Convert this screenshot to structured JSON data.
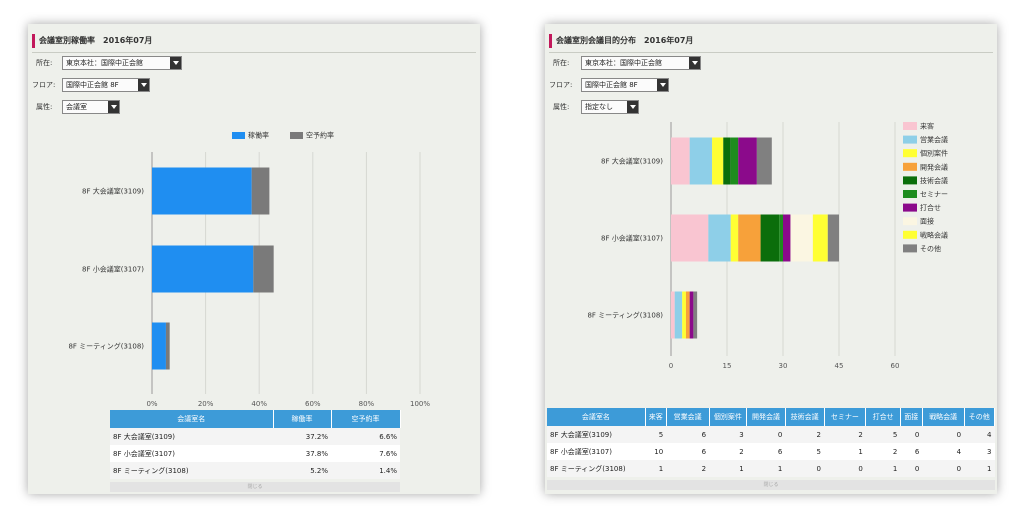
{
  "left": {
    "title": "会議室別稼働率　2016年07月",
    "filters": [
      {
        "label": "所在:",
        "value": "東京本社：国際中正会館"
      },
      {
        "label": "フロア:",
        "value": "国際中正会館 8F"
      },
      {
        "label": "属性:",
        "value": "会議室"
      }
    ],
    "table": {
      "headers": [
        "会議室名",
        "稼働率",
        "空予約率"
      ],
      "rows": [
        [
          "8F 大会議室(3109)",
          "37.2%",
          "6.6%"
        ],
        [
          "8F 小会議室(3107)",
          "37.8%",
          "7.6%"
        ],
        [
          "8F ミーティング(3108)",
          "5.2%",
          "1.4%"
        ]
      ]
    },
    "footer": "閉じる"
  },
  "right": {
    "title": "会議室別会議目的分布　2016年07月",
    "filters": [
      {
        "label": "所在:",
        "value": "東京本社：国際中正会館"
      },
      {
        "label": "フロア:",
        "value": "国際中正会館 8F"
      },
      {
        "label": "属性:",
        "value": "指定なし"
      }
    ],
    "table": {
      "headers": [
        "会議室名",
        "来客",
        "営業会議",
        "個別案件",
        "開発会議",
        "技術会議",
        "セミナー",
        "打合せ",
        "面接",
        "戦略会議",
        "その他"
      ],
      "rows": [
        [
          "8F 大会議室(3109)",
          "5",
          "6",
          "3",
          "0",
          "2",
          "2",
          "5",
          "0",
          "0",
          "4"
        ],
        [
          "8F 小会議室(3107)",
          "10",
          "6",
          "2",
          "6",
          "5",
          "1",
          "2",
          "6",
          "4",
          "3"
        ],
        [
          "8F ミーティング(3108)",
          "1",
          "2",
          "1",
          "1",
          "0",
          "0",
          "1",
          "0",
          "0",
          "1"
        ]
      ]
    },
    "footer": "閉じる"
  },
  "chart_data": [
    {
      "type": "bar",
      "orientation": "horizontal",
      "stacked": true,
      "categories": [
        "8F 大会議室(3109)",
        "8F 小会議室(3107)",
        "8F ミーティング(3108)"
      ],
      "series": [
        {
          "name": "稼働率",
          "color": "#1f8ef1",
          "values": [
            37.2,
            37.8,
            5.2
          ]
        },
        {
          "name": "空予約率",
          "color": "#7a7a7a",
          "values": [
            6.6,
            7.6,
            1.4
          ]
        }
      ],
      "x_ticks": [
        "0%",
        "20%",
        "40%",
        "60%",
        "80%",
        "100%"
      ],
      "xlim": [
        0,
        100
      ],
      "legend": "top-right",
      "grid": true
    },
    {
      "type": "bar",
      "orientation": "horizontal",
      "stacked": true,
      "categories": [
        "8F 大会議室(3109)",
        "8F 小会議室(3107)",
        "8F ミーティング(3108)"
      ],
      "series": [
        {
          "name": "来客",
          "color": "#f9c5d1",
          "values": [
            5,
            10,
            1
          ]
        },
        {
          "name": "営業会議",
          "color": "#8ecfe8",
          "values": [
            6,
            6,
            2
          ]
        },
        {
          "name": "個別案件",
          "color": "#ffff33",
          "values": [
            3,
            2,
            1
          ]
        },
        {
          "name": "開発会議",
          "color": "#f7a13a",
          "values": [
            0,
            6,
            1
          ]
        },
        {
          "name": "技術会議",
          "color": "#0b6e0b",
          "values": [
            2,
            5,
            0
          ]
        },
        {
          "name": "セミナー",
          "color": "#1e8c1e",
          "values": [
            2,
            1,
            0
          ]
        },
        {
          "name": "打合せ",
          "color": "#8b0a8b",
          "values": [
            5,
            2,
            1
          ]
        },
        {
          "name": "面接",
          "color": "#fbf6e2",
          "values": [
            0,
            6,
            0
          ]
        },
        {
          "name": "戦略会議",
          "color": "#ffff33",
          "values": [
            0,
            4,
            0
          ]
        },
        {
          "name": "その他",
          "color": "#808080",
          "values": [
            4,
            3,
            1
          ]
        }
      ],
      "x_ticks": [
        "0",
        "15",
        "30",
        "45",
        "60"
      ],
      "xlim": [
        0,
        60
      ],
      "legend": "right",
      "grid": true
    }
  ]
}
